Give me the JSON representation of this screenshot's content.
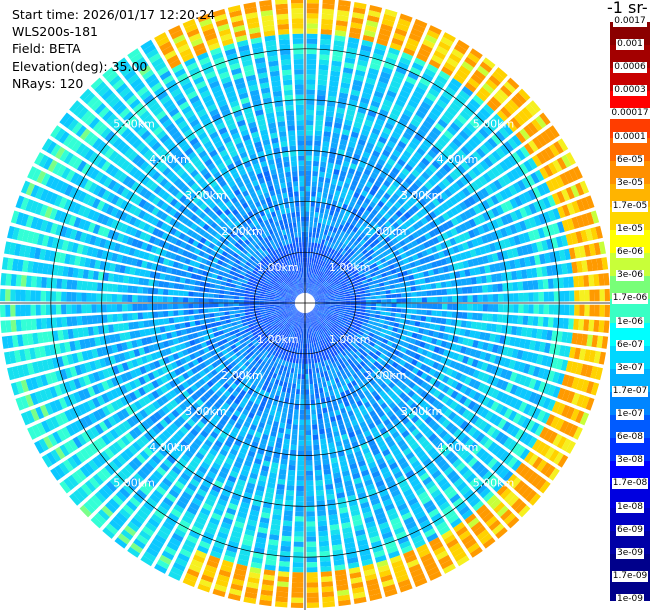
{
  "header": {
    "start_time": "Start time: 2026/01/17 12:20:24",
    "instrument": "WLS200s-181",
    "field": "Field: BETA",
    "elevation": "Elevation(deg): 35.00",
    "nrays": "NRays: 120"
  },
  "colorbar": {
    "title": "-1 sr-",
    "labels": [
      "0.0017",
      "0.001",
      "0.0006",
      "0.0003",
      "0.00017",
      "0.0001",
      "6e-05",
      "3e-05",
      "1.7e-05",
      "1e-05",
      "6e-06",
      "3e-06",
      "1.7e-06",
      "1e-06",
      "6e-07",
      "3e-07",
      "1.7e-07",
      "1e-07",
      "6e-08",
      "3e-08",
      "1.7e-08",
      "1e-08",
      "6e-09",
      "3e-09",
      "1.7e-09",
      "1e-09"
    ],
    "colors": [
      "#8b0000",
      "#a30000",
      "#c80000",
      "#ff0000",
      "#ff3d00",
      "#ff6800",
      "#ff9000",
      "#ffb400",
      "#ffd600",
      "#ffff00",
      "#c8ff39",
      "#78ff78",
      "#39ffc4",
      "#00ffff",
      "#00d7ff",
      "#00afff",
      "#0085ff",
      "#005bff",
      "#0033ff",
      "#0000ff",
      "#0000e0",
      "#0000c4",
      "#0000a6",
      "#00008b"
    ]
  },
  "range_rings": {
    "labels": [
      "1.00km",
      "2.00km",
      "3.00km",
      "4.00km",
      "5.00km"
    ]
  },
  "chart_data": {
    "type": "polar-ppi",
    "n_rays": 120,
    "elevation_deg": 35.0,
    "ring_km": [
      1,
      2,
      3,
      4,
      5
    ],
    "max_range_km": 6.0,
    "field": "BETA",
    "scale": "log"
  }
}
